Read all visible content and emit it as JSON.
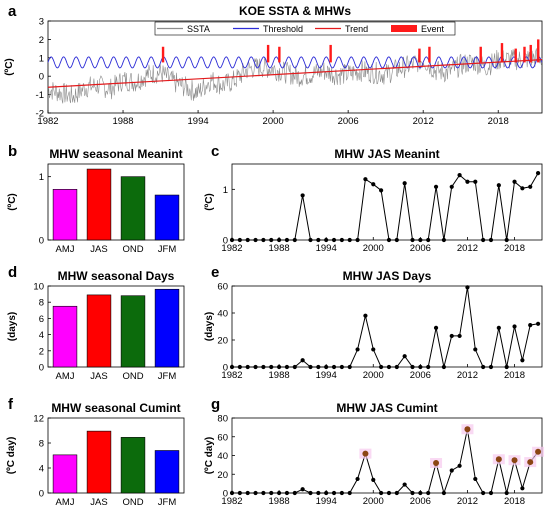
{
  "colors": {
    "ssta": "#8c8c8c",
    "threshold": "#2b2bd6",
    "trend": "#e31a1c",
    "event": "#ff1a1a",
    "amj": "#ff00ff",
    "jas": "#ff0000",
    "ond": "#0c6b0c",
    "jfm": "#0000ff",
    "marker": "#000000",
    "highlight": "#8b4513"
  },
  "chart_data": [
    {
      "id": "a",
      "panel_letter": "a",
      "type": "line",
      "title": "KOE SSTA & MHWs",
      "ylabel": "(ºC)",
      "xlim": [
        1982,
        2021.5
      ],
      "ylim": [
        -2,
        3
      ],
      "xticks": [
        "1982",
        "1988",
        "1994",
        "2000",
        "2006",
        "2012",
        "2018"
      ],
      "xtick_values": [
        1982,
        1988,
        1994,
        2000,
        2006,
        2012,
        2018
      ],
      "yticks": [
        "-2",
        "-1",
        "0",
        "1",
        "2",
        "3"
      ],
      "ytick_values": [
        -2,
        -1,
        0,
        1,
        2,
        3
      ],
      "legend": {
        "position": "top",
        "entries": [
          "SSTA",
          "Threshold",
          "Trend",
          "Event"
        ]
      },
      "series": [
        {
          "name": "SSTA",
          "style": "noisy-line",
          "x": [
            1982,
            1983,
            1984,
            1985,
            1986,
            1987,
            1988,
            1989,
            1990,
            1991,
            1992,
            1993,
            1994,
            1995,
            1996,
            1997,
            1998,
            1999,
            2000,
            2001,
            2002,
            2003,
            2004,
            2005,
            2006,
            2007,
            2008,
            2009,
            2010,
            2011,
            2012,
            2013,
            2014,
            2015,
            2016,
            2017,
            2018,
            2019,
            2020,
            2021
          ],
          "values": [
            -0.7,
            -0.9,
            -1.1,
            -0.6,
            -0.5,
            -0.7,
            -0.2,
            -0.3,
            0.1,
            0.2,
            -0.3,
            -0.6,
            -0.9,
            -0.2,
            -0.5,
            -0.2,
            0.4,
            0.5,
            0.4,
            0.2,
            0.0,
            0.1,
            0.3,
            0.1,
            0.1,
            0.3,
            0.2,
            0.1,
            0.4,
            0.6,
            0.9,
            0.3,
            0.2,
            0.6,
            0.8,
            0.5,
            0.9,
            0.9,
            0.9,
            1.0
          ]
        },
        {
          "name": "Threshold",
          "style": "seasonal-cycle",
          "mean": 0.75,
          "amplitude": 0.3,
          "period": 1
        },
        {
          "name": "Trend",
          "x": [
            1982,
            2021.5
          ],
          "values": [
            -0.6,
            0.9
          ]
        },
        {
          "name": "Event",
          "style": "bars",
          "x": [
            1991.2,
            1999.6,
            2000.5,
            2004.6,
            2011.7,
            2012.5,
            2016.6,
            2018.3,
            2019.4,
            2020.1,
            2020.6,
            2021.2
          ],
          "values": [
            1.6,
            1.7,
            1.6,
            1.7,
            1.5,
            1.6,
            1.6,
            1.8,
            1.5,
            1.6,
            1.7,
            2.0
          ]
        }
      ],
      "grid": false
    },
    {
      "id": "b",
      "panel_letter": "b",
      "type": "bar",
      "title": "MHW seasonal Meanint",
      "ylabel": "(ºC)",
      "categories": [
        "AMJ",
        "JAS",
        "OND",
        "JFM"
      ],
      "values": [
        0.8,
        1.12,
        1.0,
        0.71
      ],
      "ylim": [
        0,
        1.2
      ],
      "yticks": [
        "0",
        "1"
      ],
      "ytick_values": [
        0,
        1
      ]
    },
    {
      "id": "c",
      "panel_letter": "c",
      "type": "line",
      "title": "MHW JAS Meanint",
      "ylabel": "(ºC)",
      "x": [
        1982,
        1983,
        1984,
        1985,
        1986,
        1987,
        1988,
        1989,
        1990,
        1991,
        1992,
        1993,
        1994,
        1995,
        1996,
        1997,
        1998,
        1999,
        2000,
        2001,
        2002,
        2003,
        2004,
        2005,
        2006,
        2007,
        2008,
        2009,
        2010,
        2011,
        2012,
        2013,
        2014,
        2015,
        2016,
        2017,
        2018,
        2019,
        2020,
        2021
      ],
      "values": [
        0,
        0,
        0,
        0,
        0,
        0,
        0,
        0,
        0,
        0.88,
        0,
        0,
        0,
        0,
        0,
        0,
        0,
        1.2,
        1.1,
        0.98,
        0,
        0,
        1.12,
        0,
        0,
        0,
        1.05,
        0,
        1.05,
        1.28,
        1.15,
        1.15,
        0,
        0,
        1.08,
        0,
        1.15,
        1.02,
        1.05,
        1.32
      ],
      "xlim": [
        1982,
        2021.5
      ],
      "ylim": [
        0,
        1.5
      ],
      "xticks": [
        "1982",
        "1988",
        "1994",
        "2000",
        "2006",
        "2012",
        "2018"
      ],
      "xtick_values": [
        1982,
        1988,
        1994,
        2000,
        2006,
        2012,
        2018
      ],
      "yticks": [
        "0",
        "1"
      ],
      "ytick_values": [
        0,
        1
      ]
    },
    {
      "id": "d",
      "panel_letter": "d",
      "type": "bar",
      "title": "MHW seasonal Days",
      "ylabel": "(days)",
      "categories": [
        "AMJ",
        "JAS",
        "OND",
        "JFM"
      ],
      "values": [
        7.5,
        8.9,
        8.8,
        9.6
      ],
      "ylim": [
        0,
        10
      ],
      "yticks": [
        "0",
        "2",
        "4",
        "6",
        "8",
        "10"
      ],
      "ytick_values": [
        0,
        2,
        4,
        6,
        8,
        10
      ]
    },
    {
      "id": "e",
      "panel_letter": "e",
      "type": "line",
      "title": "MHW JAS Days",
      "ylabel": "(days)",
      "x": [
        1982,
        1983,
        1984,
        1985,
        1986,
        1987,
        1988,
        1989,
        1990,
        1991,
        1992,
        1993,
        1994,
        1995,
        1996,
        1997,
        1998,
        1999,
        2000,
        2001,
        2002,
        2003,
        2004,
        2005,
        2006,
        2007,
        2008,
        2009,
        2010,
        2011,
        2012,
        2013,
        2014,
        2015,
        2016,
        2017,
        2018,
        2019,
        2020,
        2021
      ],
      "values": [
        0,
        0,
        0,
        0,
        0,
        0,
        0,
        0,
        0,
        5,
        0,
        0,
        0,
        0,
        0,
        0,
        13,
        38,
        13,
        0,
        0,
        0,
        8,
        0,
        0,
        0,
        29,
        0,
        23,
        23,
        59,
        13,
        0,
        0,
        29,
        0,
        30,
        5,
        31,
        32
      ],
      "xlim": [
        1982,
        2021.5
      ],
      "ylim": [
        0,
        60
      ],
      "xticks": [
        "1982",
        "1988",
        "1994",
        "2000",
        "2006",
        "2012",
        "2018"
      ],
      "xtick_values": [
        1982,
        1988,
        1994,
        2000,
        2006,
        2012,
        2018
      ],
      "yticks": [
        "0",
        "20",
        "40",
        "60"
      ],
      "ytick_values": [
        0,
        20,
        40,
        60
      ]
    },
    {
      "id": "f",
      "panel_letter": "f",
      "type": "bar",
      "title": "MHW seasonal Cumint",
      "ylabel": "(ºC day)",
      "categories": [
        "AMJ",
        "JAS",
        "OND",
        "JFM"
      ],
      "values": [
        6.1,
        9.9,
        8.9,
        6.8
      ],
      "ylim": [
        0,
        12
      ],
      "yticks": [
        "0",
        "4",
        "8",
        "12"
      ],
      "ytick_values": [
        0,
        4,
        8,
        12
      ]
    },
    {
      "id": "g",
      "panel_letter": "g",
      "type": "line",
      "title": "MHW JAS Cumint",
      "ylabel": "(ºC day)",
      "x": [
        1982,
        1983,
        1984,
        1985,
        1986,
        1987,
        1988,
        1989,
        1990,
        1991,
        1992,
        1993,
        1994,
        1995,
        1996,
        1997,
        1998,
        1999,
        2000,
        2001,
        2002,
        2003,
        2004,
        2005,
        2006,
        2007,
        2008,
        2009,
        2010,
        2011,
        2012,
        2013,
        2014,
        2015,
        2016,
        2017,
        2018,
        2019,
        2020,
        2021
      ],
      "values": [
        0,
        0,
        0,
        0,
        0,
        0,
        0,
        0,
        0,
        4,
        0,
        0,
        0,
        0,
        0,
        0,
        15,
        42,
        14,
        0,
        0,
        0,
        9,
        0,
        0,
        0,
        32,
        0,
        24,
        29,
        68,
        15,
        0,
        0,
        36,
        0,
        35,
        5,
        33,
        44
      ],
      "highlight_x": [
        1999,
        2008,
        2012,
        2016,
        2018,
        2020,
        2021
      ],
      "xlim": [
        1982,
        2021.5
      ],
      "ylim": [
        0,
        80
      ],
      "xticks": [
        "1982",
        "1988",
        "1994",
        "2000",
        "2006",
        "2012",
        "2018"
      ],
      "xtick_values": [
        1982,
        1988,
        1994,
        2000,
        2006,
        2012,
        2018
      ],
      "yticks": [
        "0",
        "20",
        "40",
        "60",
        "80"
      ],
      "ytick_values": [
        0,
        20,
        40,
        60,
        80
      ]
    }
  ]
}
